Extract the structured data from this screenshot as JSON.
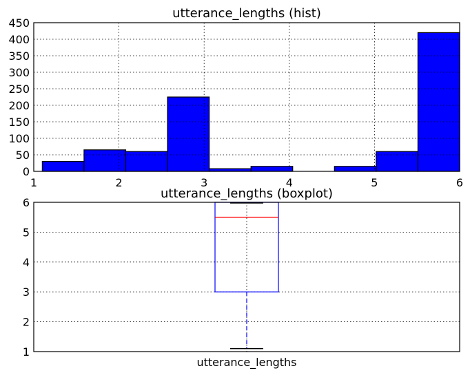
{
  "chart_data": [
    {
      "type": "bar",
      "subtype": "histogram",
      "title": "utterance_lengths (hist)",
      "xlabel": "",
      "ylabel": "",
      "xlim": [
        1,
        6
      ],
      "ylim": [
        0,
        450
      ],
      "xticks": [
        1,
        2,
        3,
        4,
        5,
        6
      ],
      "yticks": [
        0,
        50,
        100,
        150,
        200,
        250,
        300,
        350,
        400,
        450
      ],
      "bin_edges": [
        1.1,
        1.59,
        2.08,
        2.57,
        3.06,
        3.55,
        4.04,
        4.53,
        5.02,
        5.51,
        6.0
      ],
      "values": [
        30,
        65,
        60,
        225,
        8,
        15,
        0,
        15,
        60,
        420
      ],
      "bar_color": "#0000ff",
      "grid": true,
      "legend": "none"
    },
    {
      "type": "boxplot",
      "title": "utterance_lengths (boxplot)",
      "categories": [
        "utterance_lengths"
      ],
      "xlabel": "",
      "ylabel": "",
      "ylim": [
        1,
        6
      ],
      "yticks": [
        1,
        2,
        3,
        4,
        5,
        6
      ],
      "box": {
        "min": 1.1,
        "q1": 3.0,
        "median": 5.5,
        "q3": 6.0,
        "max": 6.0
      },
      "box_color": "#0000ff",
      "median_color": "#ff0000",
      "grid": true,
      "legend": "none"
    }
  ]
}
